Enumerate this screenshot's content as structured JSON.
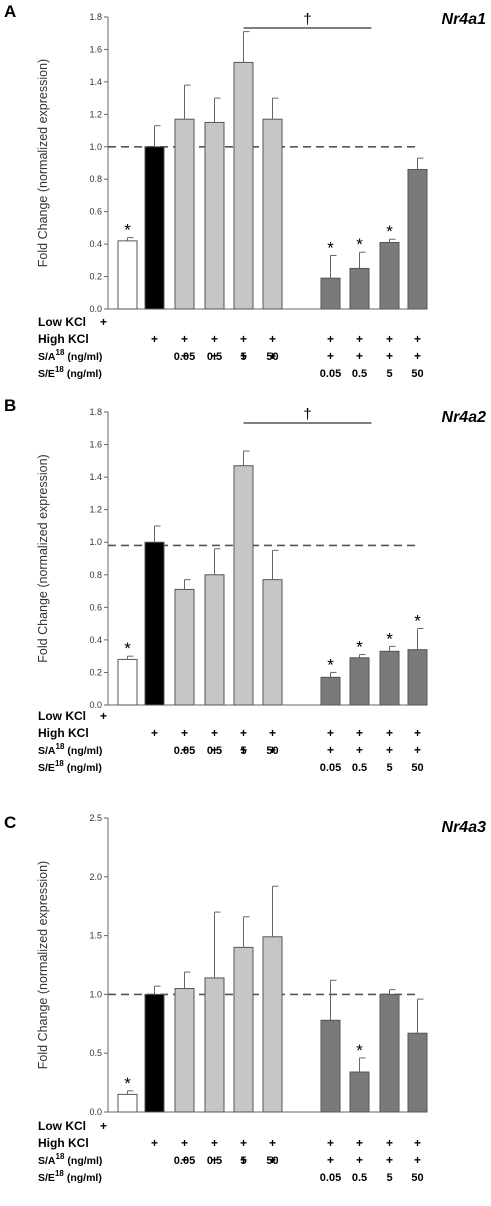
{
  "chart_data": [
    {
      "type": "bar",
      "panel": "A",
      "gene": "Nr4a1",
      "ylabel": "Fold Change (normalized expression)",
      "ylim": [
        0,
        1.8
      ],
      "yticks": [
        "0.0",
        "0.2",
        "0.4",
        "0.6",
        "0.8",
        "1.0",
        "1.2",
        "1.4",
        "1.6",
        "1.8"
      ],
      "reference_line": 1.0,
      "values": [
        0.42,
        1.0,
        1.17,
        1.15,
        1.52,
        1.17,
        0.19,
        0.25,
        0.41,
        0.86
      ],
      "errors": [
        0.02,
        0.13,
        0.21,
        0.15,
        0.19,
        0.13,
        0.14,
        0.1,
        0.02,
        0.07
      ],
      "stars": [
        0,
        6,
        7,
        8
      ],
      "dagger": {
        "symbol": "†",
        "from": 4,
        "to": 7
      },
      "colors": [
        "#ffffff",
        "#000000",
        "#c6c6c6",
        "#c6c6c6",
        "#c6c6c6",
        "#c6c6c6",
        "#7a7a7a",
        "#7a7a7a",
        "#7a7a7a",
        "#7a7a7a"
      ]
    },
    {
      "type": "bar",
      "panel": "B",
      "gene": "Nr4a2",
      "ylabel": "Fold Change (normalized expression)",
      "ylim": [
        0,
        1.8
      ],
      "yticks": [
        "0.0",
        "0.2",
        "0.4",
        "0.6",
        "0.8",
        "1.0",
        "1.2",
        "1.4",
        "1.6",
        "1.8"
      ],
      "reference_line": 0.98,
      "values": [
        0.28,
        1.0,
        0.71,
        0.8,
        1.47,
        0.77,
        0.17,
        0.29,
        0.33,
        0.34
      ],
      "errors": [
        0.02,
        0.1,
        0.06,
        0.16,
        0.09,
        0.18,
        0.03,
        0.02,
        0.03,
        0.13
      ],
      "stars": [
        0,
        6,
        7,
        8,
        9
      ],
      "dagger": {
        "symbol": "†",
        "from": 4,
        "to": 7
      },
      "colors": [
        "#ffffff",
        "#000000",
        "#c6c6c6",
        "#c6c6c6",
        "#c6c6c6",
        "#c6c6c6",
        "#7a7a7a",
        "#7a7a7a",
        "#7a7a7a",
        "#7a7a7a"
      ]
    },
    {
      "type": "bar",
      "panel": "C",
      "gene": "Nr4a3",
      "ylabel": "Fold Change (normalized expression)",
      "ylim": [
        0,
        2.5
      ],
      "yticks": [
        "0.0",
        "0.5",
        "1.0",
        "1.5",
        "2.0",
        "2.5"
      ],
      "reference_line": 1.0,
      "values": [
        0.15,
        1.0,
        1.05,
        1.14,
        1.4,
        1.49,
        0.78,
        0.34,
        1.0,
        0.67
      ],
      "errors": [
        0.03,
        0.07,
        0.14,
        0.56,
        0.26,
        0.43,
        0.34,
        0.12,
        0.04,
        0.29
      ],
      "stars": [
        0,
        7
      ],
      "colors": [
        "#ffffff",
        "#000000",
        "#c6c6c6",
        "#c6c6c6",
        "#c6c6c6",
        "#c6c6c6",
        "#7a7a7a",
        "#7a7a7a",
        "#7a7a7a",
        "#7a7a7a"
      ]
    }
  ],
  "conditions": {
    "low_kcl": "Low KCl",
    "high_kcl": "High KCl",
    "sa_main": "S/A",
    "se_main": "S/E",
    "superscript": "18",
    "unit": "(ng/ml)",
    "plus": "+",
    "star": "*",
    "sa_conc": [
      "0.05",
      "0.5",
      "5",
      "50"
    ],
    "se_conc": [
      "0.05",
      "0.5",
      "5",
      "50"
    ]
  }
}
